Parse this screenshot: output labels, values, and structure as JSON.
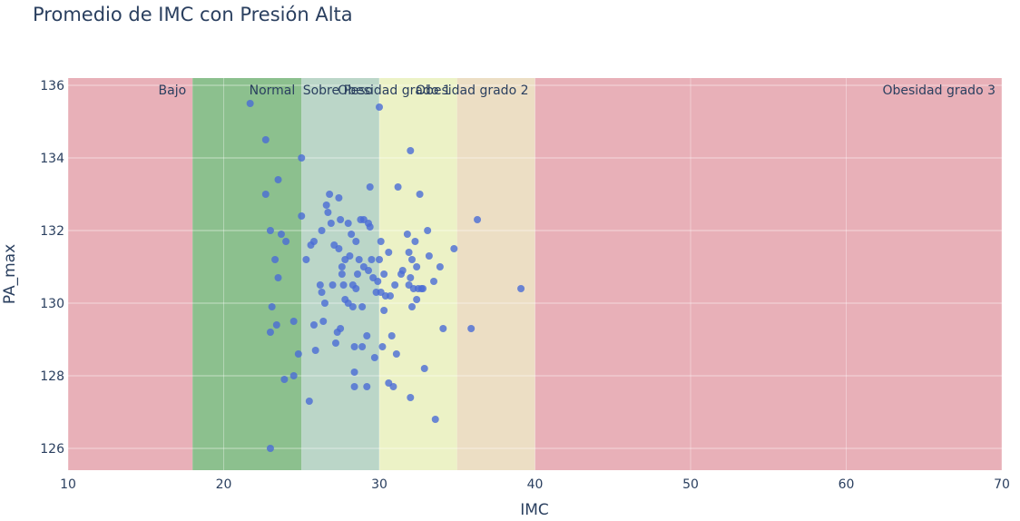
{
  "chart_data": {
    "type": "scatter",
    "title": "Promedio de IMC con Presión Alta",
    "xlabel": "IMC",
    "ylabel": "PA_max",
    "xlim": [
      10,
      70
    ],
    "ylim": [
      125.4,
      136.2
    ],
    "x_ticks": [
      10,
      20,
      30,
      40,
      50,
      60,
      70
    ],
    "y_ticks": [
      126,
      128,
      130,
      132,
      134,
      136
    ],
    "grid": true,
    "legend": "none",
    "point_color": "#4a6bd6",
    "bands": [
      {
        "label": "Bajo",
        "x0": 10,
        "x1": 18,
        "color": "#e8b0b8",
        "label_anchor": "end"
      },
      {
        "label": "Normal",
        "x0": 18,
        "x1": 25,
        "color": "#8cc08e",
        "label_anchor": "end"
      },
      {
        "label": "Sobre Peso",
        "x0": 25,
        "x1": 30,
        "color": "#bbd6c8",
        "label_anchor": "end"
      },
      {
        "label": "Obesidad grado 1",
        "x0": 30,
        "x1": 35,
        "color": "#ecf2c6",
        "label_anchor": "end"
      },
      {
        "label": "Obesidad grado 2",
        "x0": 35,
        "x1": 40,
        "color": "#ecdec4",
        "label_anchor": "end"
      },
      {
        "label": "Obesidad grado 3",
        "x0": 40,
        "x1": 70,
        "color": "#e8b0b8",
        "label_anchor": "end"
      }
    ],
    "points": [
      [
        21.7,
        135.5
      ],
      [
        22.7,
        134.5
      ],
      [
        22.7,
        133.0
      ],
      [
        23.0,
        132.0
      ],
      [
        23.3,
        131.2
      ],
      [
        23.5,
        130.7
      ],
      [
        23.1,
        129.9
      ],
      [
        23.0,
        129.2
      ],
      [
        23.4,
        129.4
      ],
      [
        23.0,
        126.0
      ],
      [
        23.5,
        133.4
      ],
      [
        23.7,
        131.9
      ],
      [
        24.0,
        131.7
      ],
      [
        24.5,
        129.5
      ],
      [
        24.5,
        128.0
      ],
      [
        23.9,
        127.9
      ],
      [
        24.8,
        128.6
      ],
      [
        25.0,
        134.0
      ],
      [
        25.0,
        132.4
      ],
      [
        25.3,
        131.2
      ],
      [
        25.5,
        127.3
      ],
      [
        25.6,
        131.6
      ],
      [
        25.8,
        131.7
      ],
      [
        25.8,
        129.4
      ],
      [
        25.9,
        128.7
      ],
      [
        26.2,
        130.5
      ],
      [
        26.3,
        130.3
      ],
      [
        26.3,
        132.0
      ],
      [
        26.4,
        129.5
      ],
      [
        26.5,
        130.0
      ],
      [
        26.6,
        132.7
      ],
      [
        26.7,
        132.5
      ],
      [
        26.8,
        133.0
      ],
      [
        26.9,
        132.2
      ],
      [
        27.0,
        130.5
      ],
      [
        27.1,
        131.6
      ],
      [
        27.2,
        128.9
      ],
      [
        27.3,
        129.2
      ],
      [
        27.4,
        132.9
      ],
      [
        27.4,
        131.5
      ],
      [
        27.5,
        129.3
      ],
      [
        27.5,
        132.3
      ],
      [
        27.6,
        131.0
      ],
      [
        27.6,
        130.8
      ],
      [
        27.7,
        130.5
      ],
      [
        27.8,
        131.2
      ],
      [
        27.8,
        130.1
      ],
      [
        28.0,
        132.2
      ],
      [
        28.0,
        130.0
      ],
      [
        28.1,
        131.3
      ],
      [
        28.2,
        131.9
      ],
      [
        28.3,
        130.5
      ],
      [
        28.3,
        129.9
      ],
      [
        28.4,
        128.8
      ],
      [
        28.4,
        128.1
      ],
      [
        28.4,
        127.7
      ],
      [
        28.5,
        131.7
      ],
      [
        28.5,
        130.4
      ],
      [
        28.6,
        130.8
      ],
      [
        28.7,
        131.2
      ],
      [
        28.8,
        132.3
      ],
      [
        28.9,
        129.9
      ],
      [
        28.9,
        128.8
      ],
      [
        29.0,
        132.3
      ],
      [
        29.0,
        131.0
      ],
      [
        29.2,
        129.1
      ],
      [
        29.2,
        127.7
      ],
      [
        29.3,
        130.9
      ],
      [
        29.3,
        132.2
      ],
      [
        29.4,
        132.1
      ],
      [
        29.4,
        133.2
      ],
      [
        29.5,
        131.2
      ],
      [
        29.6,
        130.7
      ],
      [
        29.7,
        128.5
      ],
      [
        29.8,
        130.3
      ],
      [
        29.9,
        130.6
      ],
      [
        30.0,
        135.4
      ],
      [
        30.0,
        131.2
      ],
      [
        30.1,
        131.7
      ],
      [
        30.1,
        130.3
      ],
      [
        30.2,
        128.8
      ],
      [
        30.3,
        129.8
      ],
      [
        30.3,
        130.8
      ],
      [
        30.4,
        130.2
      ],
      [
        30.6,
        131.4
      ],
      [
        30.6,
        127.8
      ],
      [
        30.7,
        130.2
      ],
      [
        30.8,
        129.1
      ],
      [
        30.9,
        127.7
      ],
      [
        31.0,
        130.5
      ],
      [
        31.1,
        128.6
      ],
      [
        31.2,
        133.2
      ],
      [
        31.4,
        130.8
      ],
      [
        31.5,
        130.9
      ],
      [
        31.8,
        131.9
      ],
      [
        31.9,
        130.5
      ],
      [
        31.9,
        131.4
      ],
      [
        32.0,
        134.2
      ],
      [
        32.0,
        130.7
      ],
      [
        32.0,
        127.4
      ],
      [
        32.1,
        131.2
      ],
      [
        32.1,
        129.9
      ],
      [
        32.2,
        130.4
      ],
      [
        32.3,
        131.7
      ],
      [
        32.4,
        131.0
      ],
      [
        32.4,
        130.1
      ],
      [
        32.5,
        130.4
      ],
      [
        32.6,
        133.0
      ],
      [
        32.7,
        130.4
      ],
      [
        32.8,
        130.4
      ],
      [
        32.9,
        128.2
      ],
      [
        33.1,
        132.0
      ],
      [
        33.2,
        131.3
      ],
      [
        33.5,
        130.6
      ],
      [
        33.6,
        126.8
      ],
      [
        33.9,
        131.0
      ],
      [
        34.1,
        129.3
      ],
      [
        34.8,
        131.5
      ],
      [
        35.9,
        129.3
      ],
      [
        36.3,
        132.3
      ],
      [
        39.1,
        130.4
      ]
    ]
  }
}
